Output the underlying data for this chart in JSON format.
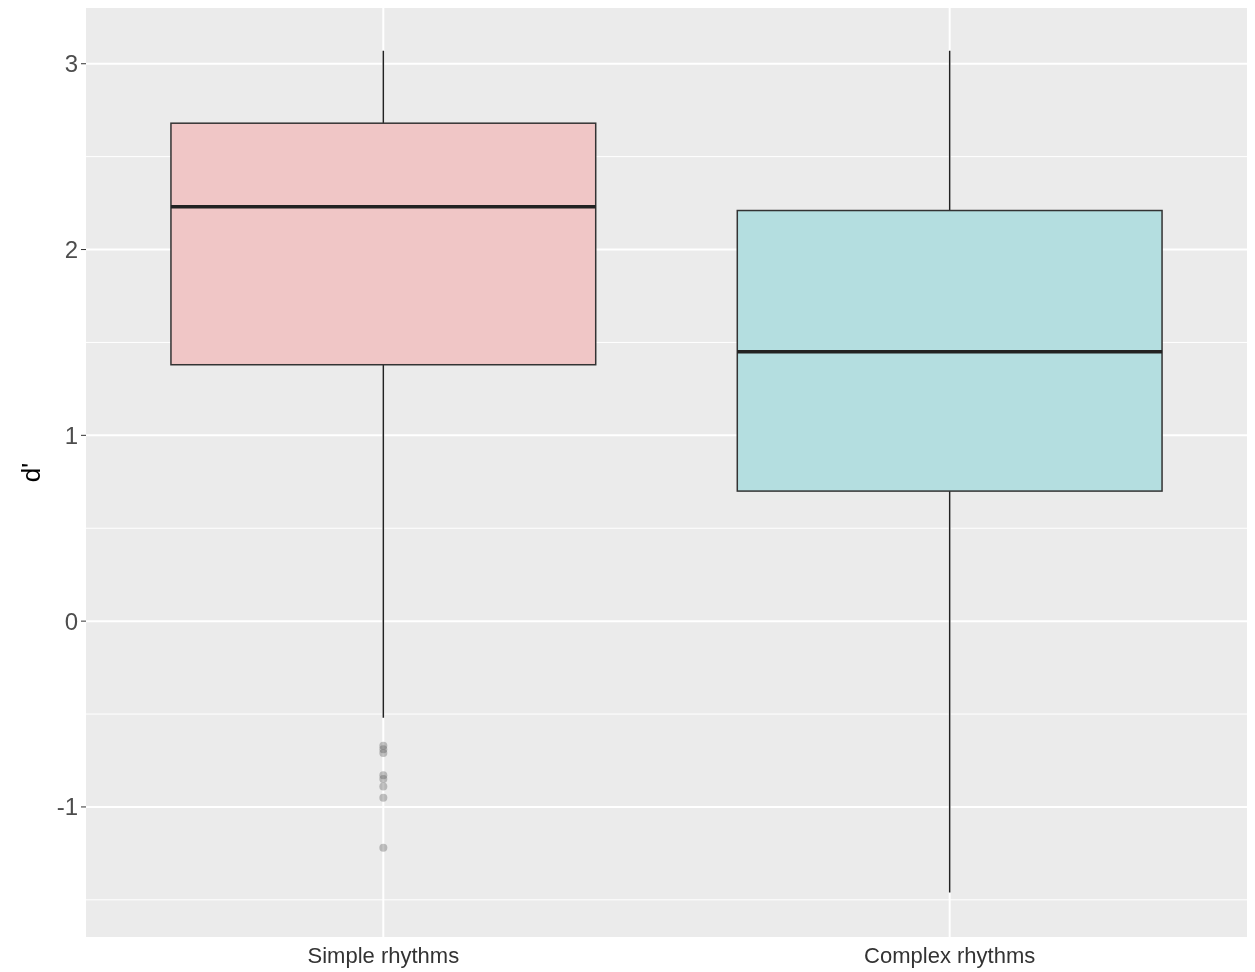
{
  "chart_data": {
    "type": "box",
    "ylabel": "d'",
    "categories": [
      "Simple rhythms",
      "Complex rhythms"
    ],
    "series": [
      {
        "colors": [
          "#f0c6c6",
          "#b4dee0"
        ],
        "boxes": [
          {
            "low": -0.52,
            "q1": 1.38,
            "median": 2.23,
            "q3": 2.68,
            "high": 3.07,
            "outliers": [
              -0.67,
              -0.69,
              -0.71,
              -0.83,
              -0.85,
              -0.89,
              -0.95,
              -1.22
            ]
          },
          {
            "low": -1.46,
            "q1": 0.7,
            "median": 1.45,
            "q3": 2.21,
            "high": 3.07
          }
        ]
      }
    ],
    "ylim": [
      -1.7,
      3.3
    ],
    "yticks": [
      -1,
      0,
      1,
      2,
      3
    ],
    "grid": true
  }
}
